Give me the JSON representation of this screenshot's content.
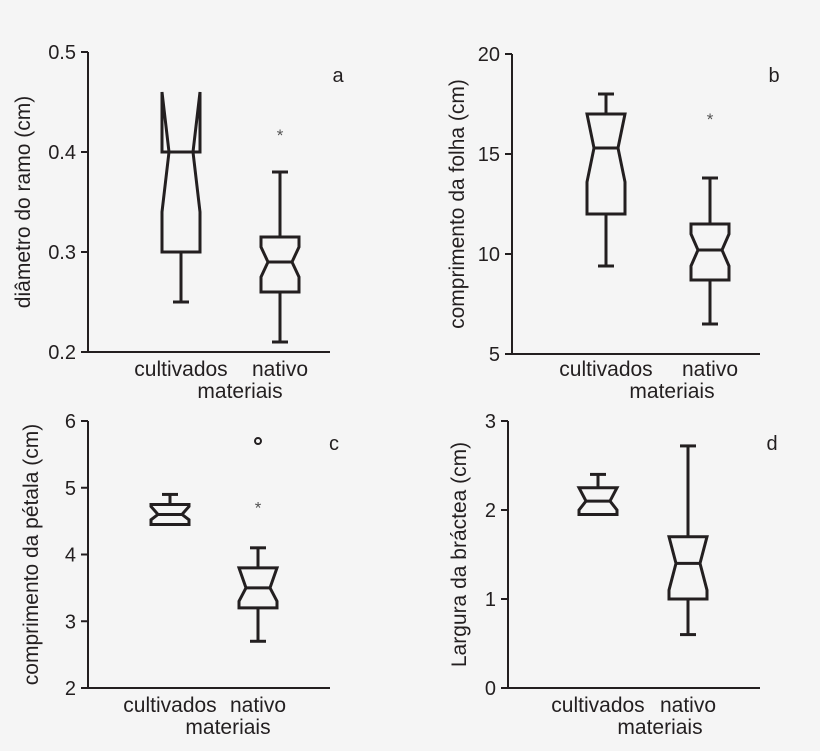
{
  "colors": {
    "background": "#f5f5f5",
    "ink": "#231f20",
    "outlier": "#555555"
  },
  "chart_data": [
    {
      "type": "boxplot",
      "panel_label": "a",
      "ylabel": "diâmetro do ramo (cm)",
      "xlabel": "materiais",
      "categories": [
        "cultivados",
        "nativo"
      ],
      "ylim": [
        0.2,
        0.5
      ],
      "yticks": [
        "0.2",
        "0.3",
        "0.4",
        "0.5"
      ],
      "boxes": [
        {
          "whisker_low": 0.25,
          "q1": 0.3,
          "median": 0.4,
          "q3": 0.4,
          "whisker_high": 0.45,
          "notch_low": 0.34,
          "notch_high": 0.46,
          "outliers": []
        },
        {
          "whisker_low": 0.21,
          "q1": 0.26,
          "median": 0.29,
          "q3": 0.315,
          "whisker_high": 0.38,
          "notch_low": 0.275,
          "notch_high": 0.305,
          "outliers": [
            {
              "value": 0.42,
              "marker": "*"
            }
          ]
        }
      ]
    },
    {
      "type": "boxplot",
      "panel_label": "b",
      "ylabel": "comprimento da folha (cm)",
      "xlabel": "materiais",
      "categories": [
        "cultivados",
        "nativo"
      ],
      "ylim": [
        5,
        20
      ],
      "yticks": [
        "5",
        "10",
        "15",
        "20"
      ],
      "boxes": [
        {
          "whisker_low": 9.4,
          "q1": 12.0,
          "median": 15.3,
          "q3": 17.0,
          "whisker_high": 18.0,
          "notch_low": 13.6,
          "notch_high": 17.0,
          "outliers": []
        },
        {
          "whisker_low": 6.5,
          "q1": 8.7,
          "median": 10.2,
          "q3": 11.5,
          "whisker_high": 13.8,
          "notch_low": 9.4,
          "notch_high": 11.0,
          "outliers": [
            {
              "value": 16.9,
              "marker": "*"
            }
          ]
        }
      ]
    },
    {
      "type": "boxplot",
      "panel_label": "c",
      "ylabel": "comprimento da pétala (cm)",
      "xlabel": "materiais",
      "categories": [
        "cultivados",
        "nativo"
      ],
      "ylim": [
        2,
        6
      ],
      "yticks": [
        "2",
        "3",
        "4",
        "5",
        "6"
      ],
      "boxes": [
        {
          "whisker_low": 4.45,
          "q1": 4.45,
          "median": 4.6,
          "q3": 4.75,
          "whisker_high": 4.9,
          "notch_low": 4.52,
          "notch_high": 4.72,
          "outliers": []
        },
        {
          "whisker_low": 2.7,
          "q1": 3.2,
          "median": 3.5,
          "q3": 3.8,
          "whisker_high": 4.1,
          "notch_low": 3.3,
          "notch_high": 3.8,
          "outliers": [
            {
              "value": 5.7,
              "marker": "o"
            },
            {
              "value": 4.75,
              "marker": "*"
            }
          ]
        }
      ]
    },
    {
      "type": "boxplot",
      "panel_label": "d",
      "ylabel": "Largura da bráctea (cm)",
      "xlabel": "materiais",
      "categories": [
        "cultivados",
        "nativo"
      ],
      "ylim": [
        0,
        3
      ],
      "yticks": [
        "0",
        "1",
        "2",
        "3"
      ],
      "boxes": [
        {
          "whisker_low": 1.95,
          "q1": 1.95,
          "median": 2.1,
          "q3": 2.25,
          "whisker_high": 2.4,
          "notch_low": 2.0,
          "notch_high": 2.25,
          "outliers": []
        },
        {
          "whisker_low": 0.6,
          "q1": 1.0,
          "median": 1.4,
          "q3": 1.7,
          "whisker_high": 2.72,
          "notch_low": 1.1,
          "notch_high": 1.7,
          "outliers": []
        }
      ]
    }
  ]
}
